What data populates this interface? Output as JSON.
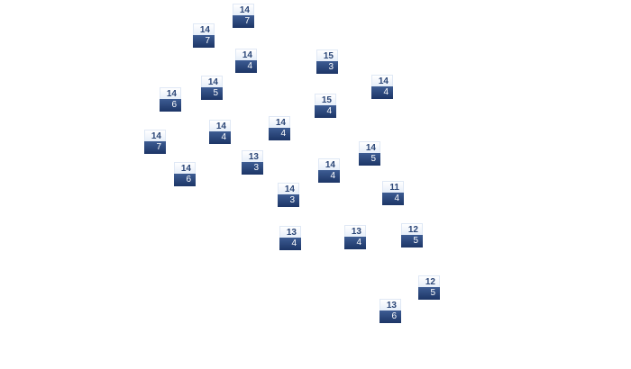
{
  "markers": [
    {
      "top": "14",
      "bottom": "7"
    },
    {
      "top": "14",
      "bottom": "7"
    },
    {
      "top": "14",
      "bottom": "4"
    },
    {
      "top": "15",
      "bottom": "3"
    },
    {
      "top": "14",
      "bottom": "5"
    },
    {
      "top": "14",
      "bottom": "4"
    },
    {
      "top": "14",
      "bottom": "6"
    },
    {
      "top": "15",
      "bottom": "4"
    },
    {
      "top": "14",
      "bottom": "4"
    },
    {
      "top": "14",
      "bottom": "4"
    },
    {
      "top": "14",
      "bottom": "7"
    },
    {
      "top": "14",
      "bottom": "5"
    },
    {
      "top": "13",
      "bottom": "3"
    },
    {
      "top": "14",
      "bottom": "4"
    },
    {
      "top": "14",
      "bottom": "6"
    },
    {
      "top": "11",
      "bottom": "4"
    },
    {
      "top": "14",
      "bottom": "3"
    },
    {
      "top": "13",
      "bottom": "4"
    },
    {
      "top": "13",
      "bottom": "4"
    },
    {
      "top": "12",
      "bottom": "5"
    },
    {
      "top": "12",
      "bottom": "5"
    },
    {
      "top": "13",
      "bottom": "6"
    }
  ],
  "colors": {
    "label_top_text": "#2a4576",
    "label_bottom_bg": "#1c3566"
  }
}
